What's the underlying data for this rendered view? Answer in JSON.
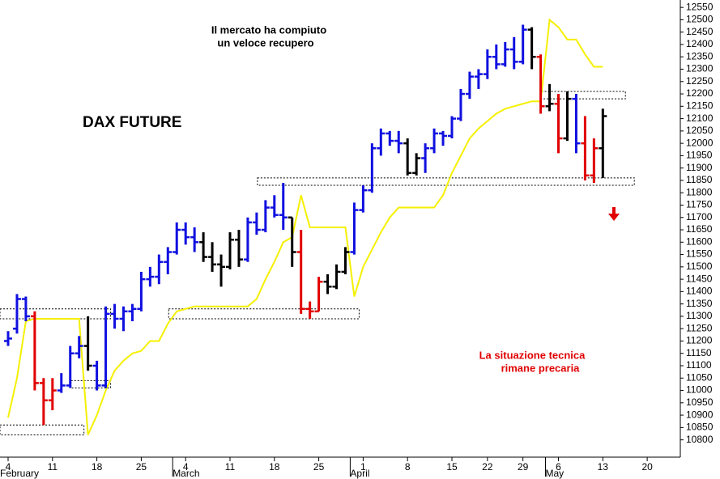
{
  "chart_data": {
    "type": "ohlc",
    "title": "DAX FUTURE",
    "headline": [
      "Il mercato ha compiuto",
      "un veloce recupero"
    ],
    "note": [
      "La situazione tecnica",
      "rimane precaria"
    ],
    "categories": [
      "4",
      null,
      null,
      null,
      null,
      "11",
      null,
      null,
      null,
      null,
      "18",
      null,
      null,
      null,
      null,
      "25",
      null,
      null,
      null,
      null,
      "4",
      null,
      null,
      null,
      null,
      "11",
      null,
      null,
      null,
      null,
      "18",
      null,
      null,
      null,
      null,
      "25",
      null,
      null,
      null,
      null,
      "1",
      null,
      null,
      null,
      null,
      "8",
      null,
      null,
      null,
      null,
      "15",
      null,
      null,
      null,
      "22",
      null,
      null,
      null,
      "29",
      null,
      null,
      null,
      "6",
      null,
      null,
      null,
      null,
      "13",
      null,
      null,
      null,
      null,
      "20",
      null,
      null,
      null
    ],
    "months": [
      "February",
      null,
      null,
      null,
      null,
      null,
      null,
      null,
      null,
      null,
      null,
      null,
      null,
      null,
      null,
      null,
      null,
      null,
      null,
      null,
      "March",
      null,
      null,
      null,
      null,
      null,
      null,
      null,
      null,
      null,
      null,
      null,
      null,
      null,
      null,
      null,
      null,
      null,
      null,
      null,
      "April",
      null,
      null,
      null,
      null,
      null,
      null,
      null,
      null,
      null,
      null,
      null,
      null,
      null,
      null,
      null,
      null,
      null,
      null,
      null,
      null,
      null,
      "May",
      null,
      null,
      null,
      null,
      null,
      null,
      null,
      null,
      null,
      null,
      null,
      null,
      null
    ],
    "open": [
      11200,
      11250,
      11370,
      11300,
      11030,
      10960,
      11000,
      11020,
      11150,
      11180,
      11100,
      11020,
      11310,
      11290,
      11320,
      11330,
      11450,
      11460,
      11520,
      11560,
      11650,
      11620,
      11600,
      11540,
      11510,
      11500,
      11610,
      11530,
      11680,
      11650,
      11740,
      11710,
      11700,
      11560,
      11330,
      11320,
      11440,
      11420,
      11480,
      11560,
      11730,
      11810,
      11980,
      12040,
      12010,
      12000,
      11880,
      11940,
      11980,
      12040,
      12030,
      12100,
      12200,
      12270,
      12280,
      12350,
      12320,
      12380,
      12330,
      12460,
      12350,
      12150,
      12160,
      12020,
      12180,
      12000,
      11870,
      11980,
      null,
      null,
      null,
      null,
      null,
      null,
      null,
      null
    ],
    "high": [
      11240,
      11390,
      11380,
      11320,
      11050,
      11050,
      11070,
      11180,
      11220,
      11300,
      11120,
      11340,
      11350,
      11340,
      11350,
      11480,
      11500,
      11550,
      11580,
      11680,
      11680,
      11660,
      11640,
      11600,
      11550,
      11640,
      11650,
      11700,
      11720,
      11770,
      11790,
      11840,
      11700,
      11650,
      11360,
      11460,
      11470,
      11510,
      11580,
      11760,
      11830,
      12000,
      12060,
      12050,
      12050,
      12020,
      11960,
      12000,
      12060,
      12050,
      12110,
      12220,
      12290,
      12300,
      12380,
      12400,
      12410,
      12430,
      12480,
      12470,
      12360,
      12240,
      12200,
      12210,
      12200,
      12110,
      12020,
      12140,
      null,
      null,
      null,
      null,
      null,
      null,
      null,
      null
    ],
    "low": [
      11180,
      11230,
      11280,
      11000,
      10860,
      10920,
      10990,
      11010,
      11130,
      11080,
      11000,
      11010,
      11250,
      11240,
      11280,
      11320,
      11420,
      11430,
      11470,
      11550,
      11590,
      11560,
      11520,
      11480,
      11420,
      11490,
      11500,
      11520,
      11630,
      11640,
      11700,
      11650,
      11500,
      11310,
      11290,
      11320,
      11390,
      11410,
      11470,
      11550,
      11720,
      11800,
      11950,
      11990,
      11960,
      11870,
      11870,
      11880,
      11960,
      11990,
      12020,
      12090,
      12180,
      12220,
      12260,
      12300,
      12310,
      12300,
      12320,
      12300,
      12120,
      12130,
      11960,
      12010,
      11960,
      11850,
      11840,
      11860,
      null,
      null,
      null,
      null,
      null,
      null,
      null,
      null
    ],
    "close": [
      11210,
      11370,
      11300,
      11030,
      10960,
      11000,
      11020,
      11150,
      11180,
      11100,
      11020,
      11310,
      11290,
      11320,
      11330,
      11450,
      11460,
      11520,
      11560,
      11650,
      11620,
      11600,
      11540,
      11510,
      11500,
      11610,
      11530,
      11680,
      11650,
      11740,
      11710,
      11700,
      11560,
      11330,
      11320,
      11440,
      11420,
      11480,
      11560,
      11730,
      11810,
      11980,
      12040,
      12010,
      12000,
      11880,
      11940,
      11980,
      12040,
      12030,
      12100,
      12200,
      12270,
      12280,
      12350,
      12320,
      12380,
      12330,
      12460,
      12350,
      12150,
      12160,
      12020,
      12180,
      12000,
      11870,
      11980,
      12110,
      null,
      null,
      null,
      null,
      null,
      null,
      null,
      null
    ],
    "colors": [
      "#1010e0",
      "#1010e0",
      "#1010e0",
      "#e00000",
      "#e00000",
      "#e00000",
      "#1010e0",
      "#1010e0",
      "#1010e0",
      "#000000",
      "#1010e0",
      "#1010e0",
      "#1010e0",
      "#1010e0",
      "#1010e0",
      "#1010e0",
      "#1010e0",
      "#1010e0",
      "#1010e0",
      "#1010e0",
      "#1010e0",
      "#1010e0",
      "#000000",
      "#000000",
      "#000000",
      "#000000",
      "#000000",
      "#1010e0",
      "#1010e0",
      "#1010e0",
      "#1010e0",
      "#1010e0",
      "#000000",
      "#e00000",
      "#e00000",
      "#e00000",
      "#000000",
      "#000000",
      "#000000",
      "#1010e0",
      "#1010e0",
      "#1010e0",
      "#1010e0",
      "#1010e0",
      "#1010e0",
      "#000000",
      "#000000",
      "#1010e0",
      "#1010e0",
      "#1010e0",
      "#1010e0",
      "#1010e0",
      "#1010e0",
      "#1010e0",
      "#1010e0",
      "#1010e0",
      "#1010e0",
      "#1010e0",
      "#1010e0",
      "#000000",
      "#e00000",
      "#000000",
      "#e00000",
      "#000000",
      "#1010e0",
      "#e00000",
      "#e00000",
      "#000000",
      null,
      null,
      null,
      null,
      null,
      null,
      null,
      null
    ],
    "line": {
      "color": "#f5f000",
      "values": [
        10890,
        11050,
        11280,
        11290,
        11290,
        11290,
        11290,
        11290,
        11290,
        10820,
        10900,
        11000,
        11080,
        11120,
        11150,
        11160,
        11200,
        11200,
        11270,
        11320,
        11330,
        11340,
        11340,
        11340,
        11340,
        11340,
        11340,
        11340,
        11370,
        11450,
        11520,
        11600,
        11620,
        11790,
        11660,
        11660,
        11660,
        11660,
        11660,
        11380,
        11500,
        11570,
        11640,
        11700,
        11740,
        11740,
        11740,
        11740,
        11740,
        11790,
        11880,
        11950,
        12020,
        12060,
        12090,
        12120,
        12140,
        12150,
        12160,
        12170,
        12170,
        12500,
        12470,
        12420,
        12420,
        12360,
        12310,
        12310,
        null,
        null,
        null,
        null,
        null,
        null,
        null,
        null
      ]
    },
    "zones": [
      {
        "start": 0,
        "end": 11,
        "low": 11290,
        "high": 11330
      },
      {
        "start": 0,
        "end": 8,
        "low": 10820,
        "high": 10860
      },
      {
        "start": 8,
        "end": 11,
        "low": 11010,
        "high": 11040
      },
      {
        "start": 19,
        "end": 39,
        "low": 11290,
        "high": 11330
      },
      {
        "start": 29,
        "end": 70,
        "low": 11830,
        "high": 11860
      },
      {
        "start": 61,
        "end": 69,
        "low": 12180,
        "high": 12210
      }
    ],
    "ylim": [
      10730,
      12580
    ],
    "yticks": [
      10800,
      10850,
      10900,
      10950,
      11000,
      11050,
      11100,
      11150,
      11200,
      11250,
      11300,
      11350,
      11400,
      11450,
      11500,
      11550,
      11600,
      11650,
      11700,
      11750,
      11800,
      11850,
      11900,
      11950,
      12000,
      12050,
      12100,
      12150,
      12200,
      12250,
      12300,
      12350,
      12400,
      12450,
      12500,
      12550
    ]
  }
}
